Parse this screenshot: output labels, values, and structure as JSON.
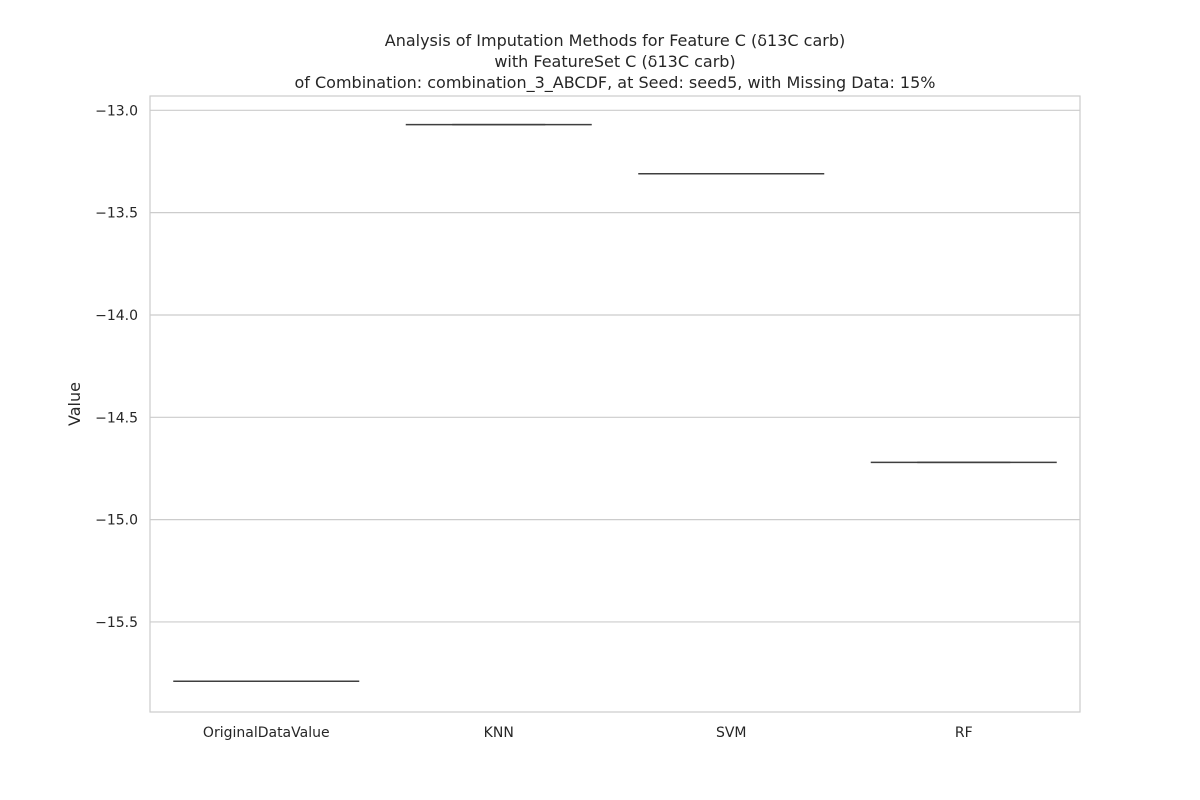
{
  "chart_data": {
    "type": "box",
    "title_lines": [
      "Analysis of Imputation Methods for Feature C (δ13C carb)",
      "with FeatureSet C (δ13C carb)",
      "of Combination: combination_3_ABCDF, at Seed: seed5, with Missing Data: 15%"
    ],
    "xlabel": "",
    "ylabel": "Value",
    "categories": [
      "OriginalDataValue",
      "KNN",
      "SVM",
      "RF"
    ],
    "values": [
      -15.79,
      -13.07,
      -13.31,
      -14.72
    ],
    "ylim": [
      -15.94,
      -12.93
    ],
    "yticks": [
      -13.0,
      -13.5,
      -14.0,
      -14.5,
      -15.0,
      -15.5
    ],
    "ytick_labels": [
      "−13.0",
      "−13.5",
      "−14.0",
      "−14.5",
      "−15.0",
      "−15.5"
    ],
    "grid": true,
    "colors": {
      "grid": "#cccccc",
      "frame": "#cccccc",
      "mark": "#3f3f3f",
      "text": "#262626"
    }
  }
}
